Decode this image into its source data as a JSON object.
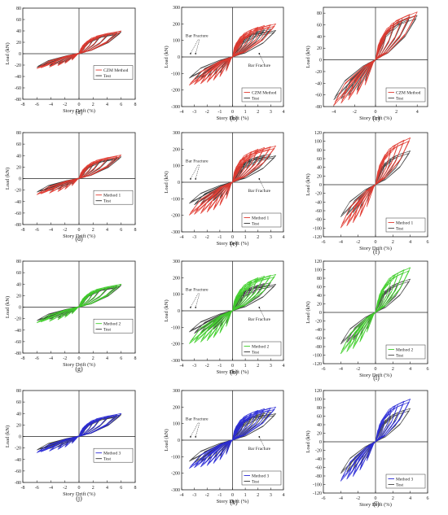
{
  "chart_data": [
    {
      "panel": "(a)",
      "type": "line",
      "xlabel": "Story Drift (%)",
      "ylabel": "Load (kN)",
      "xlim": [
        -8,
        8
      ],
      "ylim": [
        -80,
        80
      ],
      "xticks": [
        -8,
        -6,
        -4,
        -2,
        0,
        2,
        4,
        6,
        8
      ],
      "yticks": [
        -80,
        -60,
        -40,
        -20,
        0,
        20,
        40,
        60,
        80
      ],
      "legend": {
        "position": "right-middle"
      },
      "series": [
        {
          "name": "CZM Method",
          "color": "#e0392f",
          "peaks": [
            1,
            2,
            3,
            4.2,
            5.4,
            6
          ],
          "loads": [
            17,
            26,
            32,
            36,
            38,
            40
          ],
          "neg_scale": 0.65
        },
        {
          "name": "Test",
          "color": "#333333",
          "peaks": [
            1,
            2,
            3,
            4.2,
            5.4,
            6
          ],
          "loads": [
            15,
            24,
            30,
            34,
            36,
            38
          ],
          "neg_scale": 0.62
        }
      ],
      "annotations": []
    },
    {
      "panel": "(b)",
      "type": "line",
      "xlabel": "Story Drift (%)",
      "ylabel": "Load (kN)",
      "xlim": [
        -4,
        4
      ],
      "ylim": [
        -300,
        300
      ],
      "xticks": [
        -4,
        -3,
        -2,
        -1,
        0,
        1,
        2,
        3,
        4
      ],
      "yticks": [
        -300,
        -200,
        -100,
        0,
        100,
        200,
        300
      ],
      "legend": {
        "position": "right-lower"
      },
      "series": [
        {
          "name": "CZM Method",
          "color": "#e0392f",
          "peaks": [
            0.5,
            1,
            1.5,
            2,
            2.5,
            3,
            3.4
          ],
          "loads": [
            100,
            140,
            165,
            180,
            190,
            195,
            200
          ],
          "neg_scale": 0.85
        },
        {
          "name": "Test",
          "color": "#333333",
          "peaks": [
            0.5,
            1,
            1.5,
            2,
            2.5,
            3,
            3.4
          ],
          "loads": [
            95,
            120,
            140,
            155,
            165,
            170,
            160
          ],
          "neg_scale": 0.8
        }
      ],
      "annotations": [
        {
          "text": "Bar Fracture",
          "at": [
            -2.8,
            120
          ],
          "arrow": [
            [
              -2.7,
              105
            ],
            [
              -3.3,
              20
            ],
            [
              -2.6,
              105
            ],
            [
              -2.9,
              20
            ]
          ]
        },
        {
          "text": "Bar Fracture",
          "at": [
            2.1,
            -60
          ],
          "arrow": [
            [
              2.5,
              -45
            ],
            [
              2.1,
              20
            ]
          ]
        }
      ]
    },
    {
      "panel": "(c)",
      "type": "line",
      "xlabel": "Story Drift (%)",
      "ylabel": "Load (kN)",
      "xlim": [
        -5,
        5
      ],
      "ylim": [
        -80,
        90
      ],
      "xticks": [
        -4,
        -2,
        0,
        2,
        4
      ],
      "yticks": [
        -80,
        -60,
        -40,
        -20,
        0,
        20,
        40,
        60,
        80
      ],
      "legend": {
        "position": "right-lower"
      },
      "series": [
        {
          "name": "CZM Method",
          "color": "#e0392f",
          "peaks": [
            1,
            1.8,
            2.6,
            3.3,
            4
          ],
          "loads": [
            45,
            62,
            72,
            78,
            82
          ],
          "neg_scale": 0.95
        },
        {
          "name": "Test",
          "color": "#444444",
          "peaks": [
            1,
            1.8,
            2.6,
            3.3,
            4
          ],
          "loads": [
            40,
            58,
            68,
            74,
            76
          ],
          "neg_scale": 0.9
        }
      ],
      "annotations": []
    },
    {
      "panel": "(d)",
      "type": "line",
      "xlabel": "Story Drift (%)",
      "ylabel": "Load (kN)",
      "xlim": [
        -8,
        8
      ],
      "ylim": [
        -80,
        80
      ],
      "xticks": [
        -8,
        -6,
        -4,
        -2,
        0,
        2,
        4,
        6,
        8
      ],
      "yticks": [
        -80,
        -60,
        -40,
        -20,
        0,
        20,
        40,
        60,
        80
      ],
      "legend": {
        "position": "right-middle"
      },
      "series": [
        {
          "name": "Method 1",
          "color": "#e0392f",
          "peaks": [
            1,
            2,
            3,
            4.2,
            5.4,
            6
          ],
          "loads": [
            18,
            27,
            33,
            37,
            39,
            41
          ],
          "neg_scale": 0.68
        },
        {
          "name": "Test",
          "color": "#333333",
          "peaks": [
            1,
            2,
            3,
            4.2,
            5.4,
            6
          ],
          "loads": [
            15,
            24,
            30,
            34,
            36,
            38
          ],
          "neg_scale": 0.62
        }
      ],
      "annotations": []
    },
    {
      "panel": "(e)",
      "type": "line",
      "xlabel": "Story Drift (%)",
      "ylabel": "Load (kN)",
      "xlim": [
        -4,
        4
      ],
      "ylim": [
        -300,
        300
      ],
      "xticks": [
        -4,
        -3,
        -2,
        -1,
        0,
        1,
        2,
        3,
        4
      ],
      "yticks": [
        -300,
        -200,
        -100,
        0,
        100,
        200,
        300
      ],
      "legend": {
        "position": "right-lower"
      },
      "series": [
        {
          "name": "Method 1",
          "color": "#e0392f",
          "peaks": [
            0.5,
            1,
            1.5,
            2,
            2.5,
            3,
            3.4
          ],
          "loads": [
            110,
            155,
            185,
            200,
            210,
            215,
            220
          ],
          "neg_scale": 0.9
        },
        {
          "name": "Test",
          "color": "#333333",
          "peaks": [
            0.5,
            1,
            1.5,
            2,
            2.5,
            3,
            3.4
          ],
          "loads": [
            95,
            120,
            140,
            155,
            165,
            170,
            160
          ],
          "neg_scale": 0.8
        }
      ],
      "annotations": [
        {
          "text": "Bar Fracture",
          "at": [
            -2.8,
            120
          ],
          "arrow": [
            [
              -2.7,
              105
            ],
            [
              -3.3,
              20
            ],
            [
              -2.6,
              105
            ],
            [
              -2.9,
              20
            ]
          ]
        },
        {
          "text": "Bar Fracture",
          "at": [
            2.1,
            -60
          ],
          "arrow": [
            [
              2.5,
              -45
            ],
            [
              2.1,
              20
            ]
          ]
        }
      ]
    },
    {
      "panel": "(f)",
      "type": "line",
      "xlabel": "Story Drift (%)",
      "ylabel": "Load (kN)",
      "xlim": [
        -6,
        6
      ],
      "ylim": [
        -120,
        120
      ],
      "xticks": [
        -6,
        -4,
        -2,
        0,
        2,
        4,
        6
      ],
      "yticks": [
        -120,
        -100,
        -80,
        -60,
        -40,
        -20,
        0,
        20,
        40,
        60,
        80,
        100,
        120
      ],
      "legend": {
        "position": "right-lower"
      },
      "series": [
        {
          "name": "Method 1",
          "color": "#e0392f",
          "peaks": [
            1,
            1.8,
            2.6,
            3.3,
            4
          ],
          "loads": [
            55,
            80,
            95,
            103,
            108
          ],
          "neg_scale": 0.92
        },
        {
          "name": "Test",
          "color": "#444444",
          "peaks": [
            1,
            1.8,
            2.6,
            3.3,
            4
          ],
          "loads": [
            40,
            58,
            68,
            74,
            78
          ],
          "neg_scale": 0.95
        }
      ],
      "annotations": []
    },
    {
      "panel": "(g)",
      "type": "line",
      "xlabel": "Story Drift (%)",
      "ylabel": "Load (kN)",
      "xlim": [
        -8,
        8
      ],
      "ylim": [
        -80,
        80
      ],
      "xticks": [
        -8,
        -6,
        -4,
        -2,
        0,
        2,
        4,
        6,
        8
      ],
      "yticks": [
        -80,
        -60,
        -40,
        -20,
        0,
        20,
        40,
        60,
        80
      ],
      "legend": {
        "position": "right-middle"
      },
      "series": [
        {
          "name": "Method 2",
          "color": "#3fcf2a",
          "peaks": [
            1,
            2,
            3,
            4.2,
            5.4,
            6
          ],
          "loads": [
            17,
            26,
            32,
            36,
            38,
            40
          ],
          "neg_scale": 0.68
        },
        {
          "name": "Test",
          "color": "#333333",
          "peaks": [
            1,
            2,
            3,
            4.2,
            5.4,
            6
          ],
          "loads": [
            15,
            24,
            30,
            34,
            36,
            38
          ],
          "neg_scale": 0.62
        }
      ],
      "annotations": []
    },
    {
      "panel": "(h)",
      "type": "line",
      "xlabel": "Story Drift (%)",
      "ylabel": "Load (kN)",
      "xlim": [
        -4,
        4
      ],
      "ylim": [
        -300,
        300
      ],
      "xticks": [
        -4,
        -3,
        -2,
        -1,
        0,
        1,
        2,
        3,
        4
      ],
      "yticks": [
        -300,
        -200,
        -100,
        0,
        100,
        200,
        300
      ],
      "legend": {
        "position": "right-lower"
      },
      "series": [
        {
          "name": "Method 2",
          "color": "#3fcf2a",
          "peaks": [
            0.5,
            1,
            1.5,
            2,
            2.5,
            3,
            3.4
          ],
          "loads": [
            105,
            150,
            180,
            200,
            210,
            215,
            220
          ],
          "neg_scale": 0.9
        },
        {
          "name": "Test",
          "color": "#333333",
          "peaks": [
            0.5,
            1,
            1.5,
            2,
            2.5,
            3,
            3.4
          ],
          "loads": [
            95,
            120,
            140,
            155,
            165,
            170,
            160
          ],
          "neg_scale": 0.8
        }
      ],
      "annotations": [
        {
          "text": "Bar Fracture",
          "at": [
            -2.8,
            120
          ],
          "arrow": [
            [
              -2.7,
              105
            ],
            [
              -3.3,
              20
            ],
            [
              -2.6,
              105
            ],
            [
              -2.9,
              20
            ]
          ]
        },
        {
          "text": "Bar Fracture",
          "at": [
            2.1,
            -60
          ],
          "arrow": [
            [
              2.5,
              -45
            ],
            [
              2.1,
              20
            ]
          ]
        }
      ]
    },
    {
      "panel": "(i)",
      "type": "line",
      "xlabel": "Story Drift (%)",
      "ylabel": "Load (kN)",
      "xlim": [
        -6,
        6
      ],
      "ylim": [
        -120,
        120
      ],
      "xticks": [
        -6,
        -4,
        -2,
        0,
        2,
        4,
        6
      ],
      "yticks": [
        -120,
        -100,
        -80,
        -60,
        -40,
        -20,
        0,
        20,
        40,
        60,
        80,
        100,
        120
      ],
      "legend": {
        "position": "right-lower"
      },
      "series": [
        {
          "name": "Method 2",
          "color": "#3fcf2a",
          "peaks": [
            1,
            1.8,
            2.6,
            3.3,
            4
          ],
          "loads": [
            50,
            75,
            92,
            100,
            105
          ],
          "neg_scale": 0.92
        },
        {
          "name": "Test",
          "color": "#444444",
          "peaks": [
            1,
            1.8,
            2.6,
            3.3,
            4
          ],
          "loads": [
            40,
            58,
            68,
            74,
            78
          ],
          "neg_scale": 0.95
        }
      ],
      "annotations": []
    },
    {
      "panel": "(j)",
      "type": "line",
      "xlabel": "Story Drift (%)",
      "ylabel": "Load (kN)",
      "xlim": [
        -8,
        8
      ],
      "ylim": [
        -80,
        80
      ],
      "xticks": [
        -8,
        -6,
        -4,
        -2,
        0,
        2,
        4,
        6,
        8
      ],
      "yticks": [
        -80,
        -60,
        -40,
        -20,
        0,
        20,
        40,
        60,
        80
      ],
      "legend": {
        "position": "right-middle"
      },
      "series": [
        {
          "name": "Method 3",
          "color": "#2a2ad6",
          "peaks": [
            1,
            2,
            3,
            4.2,
            5.4,
            6
          ],
          "loads": [
            17,
            26,
            32,
            36,
            38,
            40
          ],
          "neg_scale": 0.7
        },
        {
          "name": "Test",
          "color": "#333333",
          "peaks": [
            1,
            2,
            3,
            4.2,
            5.4,
            6
          ],
          "loads": [
            15,
            24,
            30,
            34,
            36,
            38
          ],
          "neg_scale": 0.62
        }
      ],
      "annotations": []
    },
    {
      "panel": "(k)",
      "type": "line",
      "xlabel": "Story Drift (%)",
      "ylabel": "Load (kN)",
      "xlim": [
        -4,
        4
      ],
      "ylim": [
        -300,
        300
      ],
      "xticks": [
        -4,
        -3,
        -2,
        -1,
        0,
        1,
        2,
        3,
        4
      ],
      "yticks": [
        -300,
        -200,
        -100,
        0,
        100,
        200,
        300
      ],
      "legend": {
        "position": "right-lower"
      },
      "series": [
        {
          "name": "Method 3",
          "color": "#2a2ad6",
          "peaks": [
            0.5,
            1,
            1.5,
            2,
            2.5,
            3,
            3.4
          ],
          "loads": [
            100,
            140,
            165,
            180,
            190,
            195,
            200
          ],
          "neg_scale": 0.85
        },
        {
          "name": "Test",
          "color": "#333333",
          "peaks": [
            0.5,
            1,
            1.5,
            2,
            2.5,
            3,
            3.4
          ],
          "loads": [
            95,
            120,
            140,
            155,
            165,
            170,
            160
          ],
          "neg_scale": 0.8
        }
      ],
      "annotations": [
        {
          "text": "Bar Fracture",
          "at": [
            -2.8,
            120
          ],
          "arrow": [
            [
              -2.7,
              105
            ],
            [
              -3.3,
              20
            ],
            [
              -2.6,
              105
            ],
            [
              -2.9,
              20
            ]
          ]
        },
        {
          "text": "Bar Fracture",
          "at": [
            2.1,
            -60
          ],
          "arrow": [
            [
              2.5,
              -45
            ],
            [
              2.1,
              20
            ]
          ]
        }
      ]
    },
    {
      "panel": "(l)",
      "type": "line",
      "xlabel": "Story Drift (%)",
      "ylabel": "Load (kN)",
      "xlim": [
        -6,
        6
      ],
      "ylim": [
        -120,
        120
      ],
      "xticks": [
        -6,
        -4,
        -2,
        0,
        2,
        4,
        6
      ],
      "yticks": [
        -120,
        -100,
        -80,
        -60,
        -40,
        -20,
        0,
        20,
        40,
        60,
        80,
        100,
        120
      ],
      "legend": {
        "position": "right-lower"
      },
      "series": [
        {
          "name": "Method 3",
          "color": "#2a2ad6",
          "peaks": [
            1,
            1.8,
            2.6,
            3.3,
            4
          ],
          "loads": [
            48,
            72,
            88,
            95,
            100
          ],
          "neg_scale": 0.92
        },
        {
          "name": "Test",
          "color": "#444444",
          "peaks": [
            1,
            1.8,
            2.6,
            3.3,
            4
          ],
          "loads": [
            40,
            58,
            68,
            74,
            78
          ],
          "neg_scale": 0.95
        }
      ],
      "annotations": []
    }
  ]
}
